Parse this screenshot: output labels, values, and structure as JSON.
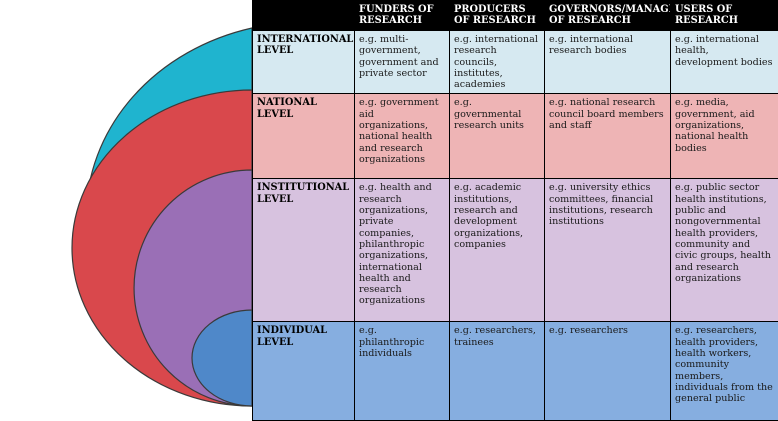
{
  "table": {
    "columns": [
      "",
      "FUNDERS OF RESEARCH",
      "PRODUCERS OF RESEARCH",
      "GOVERNORS/MANAGERS OF RESEARCH",
      "USERS OF RESEARCH"
    ],
    "rows": [
      {
        "level": "INTERNATIONAL LEVEL",
        "funders": "e.g. multi-government, government and private sector",
        "producers": "e.g. international research councils, institutes, academies",
        "governors": "e.g. international research bodies",
        "users": "e.g. international health, development bodies"
      },
      {
        "level": "NATIONAL LEVEL",
        "funders": "e.g. government aid organizations, national health and research organizations",
        "producers": "e.g. governmental research units",
        "governors": "e.g. national research council board members and staff",
        "users": "e.g. media, government, aid organizations, national health bodies"
      },
      {
        "level": "INSTITUTIONAL LEVEL",
        "funders": "e.g. health and research organizations, private companies, philanthropic organizations, international health and research organizations",
        "producers": "e.g. academic institutions, research and development organizations, companies",
        "governors": "e.g. university ethics committees, financial institutions, research institutions",
        "users": "e.g. public sector health institutions, public and nongovernmental health providers, community and civic groups, health and research organizations"
      },
      {
        "level": "INDIVIDUAL LEVEL",
        "funders": "e.g. philanthropic individuals",
        "producers": "e.g. researchers, trainees",
        "governors": "e.g. researchers",
        "users": "e.g. researchers, health providers, health workers, community members, individuals from the general public"
      }
    ]
  },
  "colors": {
    "international": "#1fb4cf",
    "national": "#d9484c",
    "institutional": "#9a6fb6",
    "individual": "#4f88c9",
    "header": "#000000"
  }
}
